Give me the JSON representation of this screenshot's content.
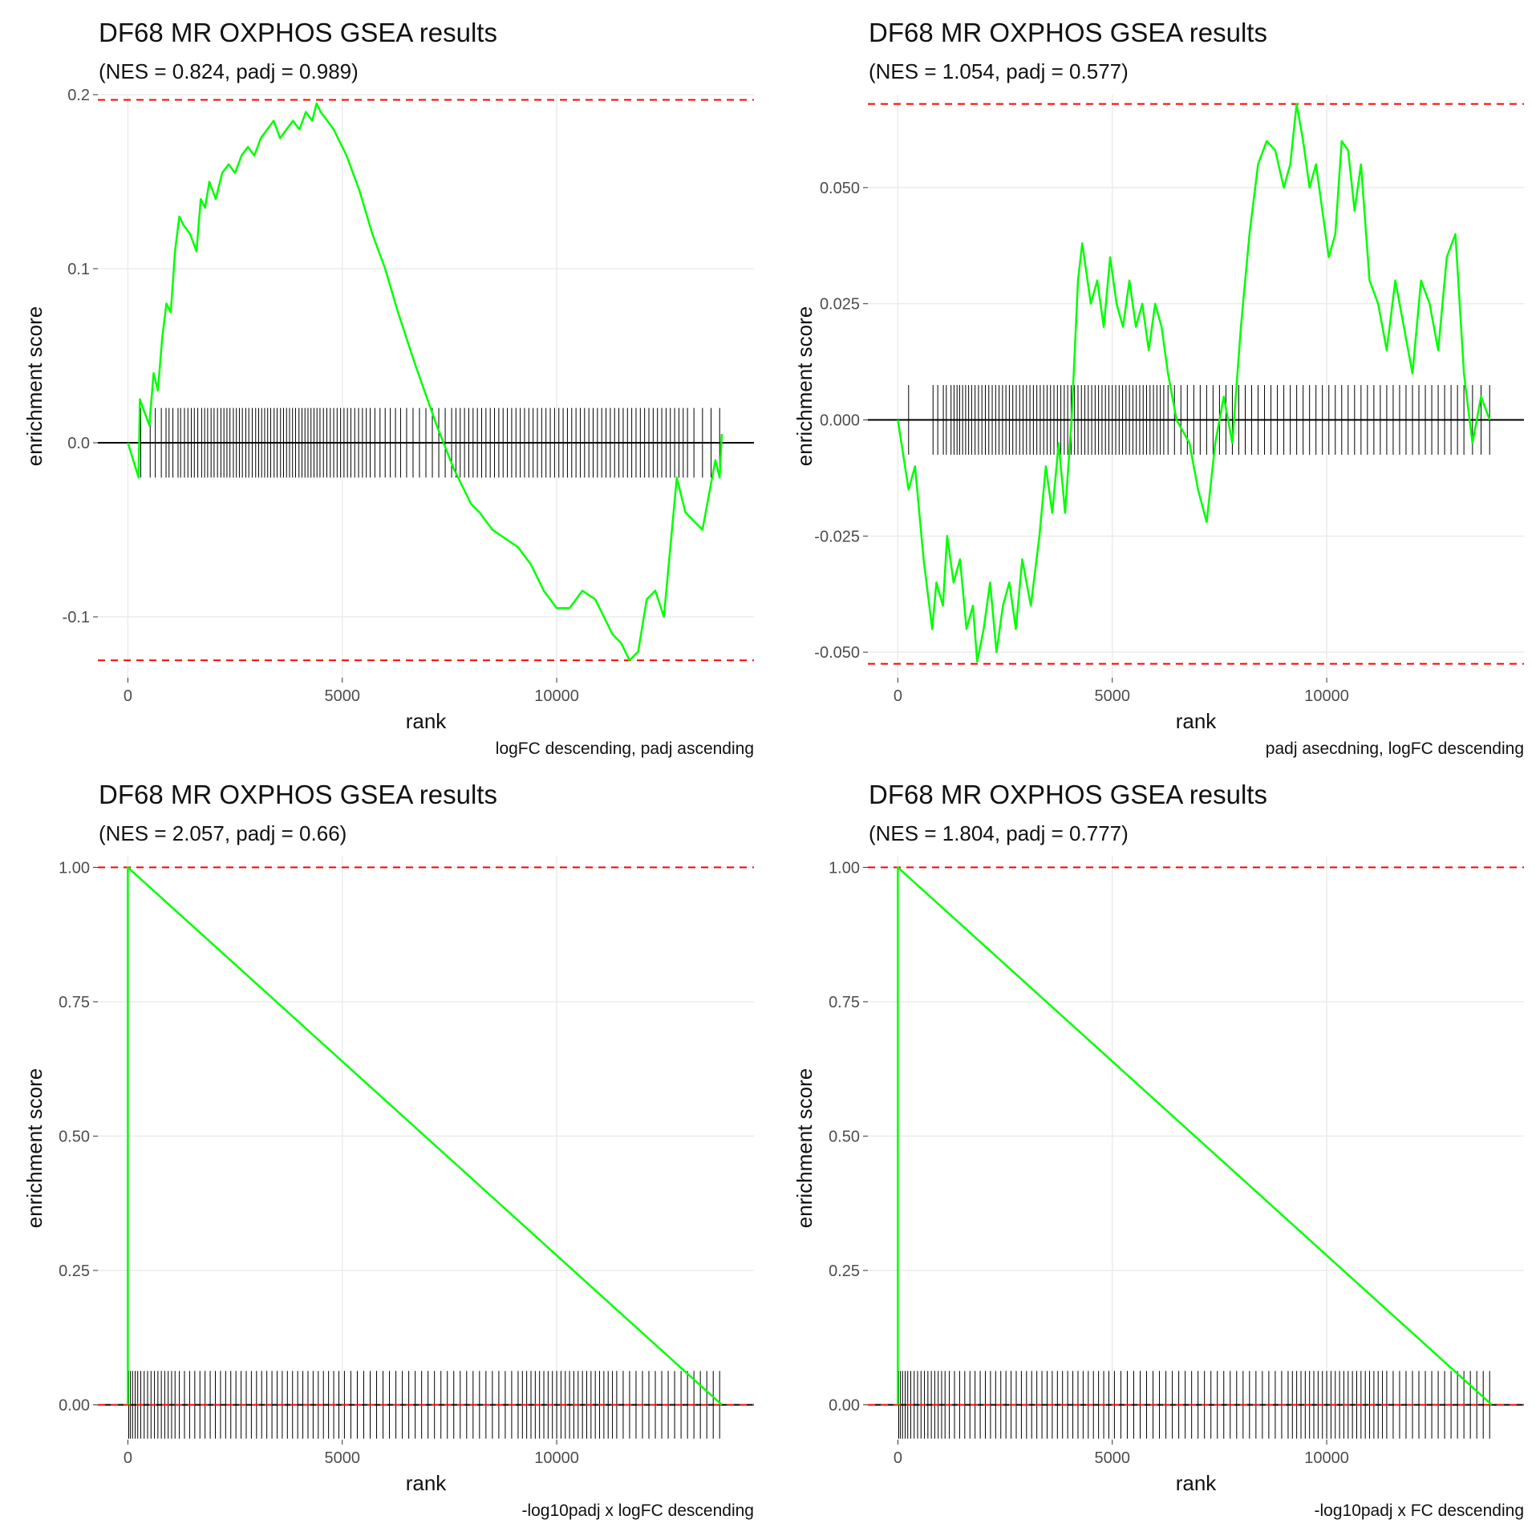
{
  "chart_data": [
    {
      "type": "line",
      "title": "DF68 MR OXPHOS GSEA results",
      "subtitle": "(NES = 0.824, padj = 0.989)",
      "caption": "logFC descending, padj ascending",
      "xlabel": "rank",
      "ylabel": "enrichment score",
      "xlim": [
        -700,
        14600
      ],
      "ylim": [
        -0.135,
        0.2
      ],
      "xticks": [
        0,
        5000,
        10000
      ],
      "xtick_labels": [
        "0",
        "5000",
        "10000"
      ],
      "yticks": [
        -0.1,
        0,
        0.1,
        0.2
      ],
      "ytick_labels": [
        "-0.1",
        "0.0",
        "0.1",
        "0.2"
      ],
      "grid": true,
      "series": [
        {
          "x": [
            0,
            250,
            280,
            500,
            600,
            700,
            800,
            900,
            1000,
            1100,
            1200,
            1300,
            1450,
            1600,
            1700,
            1800,
            1900,
            2050,
            2200,
            2350,
            2500,
            2650,
            2800,
            2950,
            3100,
            3250,
            3400,
            3550,
            3700,
            3850,
            4000,
            4150,
            4300,
            4400,
            4500,
            4800,
            5100,
            5400,
            5700,
            6000,
            6300,
            6700,
            7200,
            7600,
            8000,
            8200,
            8500,
            8800,
            9100,
            9400,
            9700,
            10000,
            10300,
            10600,
            10900,
            11100,
            11300,
            11500,
            11700,
            11900,
            12100,
            12300,
            12500,
            12800,
            13000,
            13200,
            13400,
            13700,
            13800,
            13850
          ],
          "y": [
            0.0,
            -0.02,
            0.025,
            0.01,
            0.04,
            0.03,
            0.06,
            0.08,
            0.075,
            0.11,
            0.13,
            0.125,
            0.12,
            0.11,
            0.14,
            0.135,
            0.15,
            0.14,
            0.155,
            0.16,
            0.155,
            0.165,
            0.17,
            0.165,
            0.175,
            0.18,
            0.185,
            0.175,
            0.18,
            0.185,
            0.18,
            0.19,
            0.185,
            0.195,
            0.19,
            0.18,
            0.165,
            0.145,
            0.12,
            0.1,
            0.075,
            0.045,
            0.01,
            -0.015,
            -0.035,
            -0.04,
            -0.05,
            -0.055,
            -0.06,
            -0.07,
            -0.085,
            -0.095,
            -0.095,
            -0.085,
            -0.09,
            -0.1,
            -0.11,
            -0.115,
            -0.125,
            -0.12,
            -0.09,
            -0.085,
            -0.1,
            -0.02,
            -0.04,
            -0.045,
            -0.05,
            -0.01,
            -0.02,
            0.005
          ]
        }
      ],
      "dashed_lines": [
        0.197,
        -0.125
      ],
      "rug": {
        "height": 0.02,
        "ranks": [
          300,
          520,
          640,
          780,
          890,
          960,
          1050,
          1170,
          1230,
          1320,
          1400,
          1480,
          1550,
          1630,
          1720,
          1790,
          1860,
          1940,
          2010,
          2090,
          2170,
          2240,
          2310,
          2380,
          2460,
          2530,
          2600,
          2670,
          2750,
          2820,
          2900,
          2980,
          3050,
          3120,
          3190,
          3260,
          3330,
          3410,
          3480,
          3560,
          3630,
          3700,
          3770,
          3840,
          3910,
          3990,
          4060,
          4130,
          4200,
          4270,
          4340,
          4410,
          4480,
          4560,
          4640,
          4720,
          4800,
          4880,
          4960,
          5040,
          5120,
          5200,
          5290,
          5380,
          5470,
          5560,
          5650,
          5760,
          5880,
          6000,
          6120,
          6240,
          6360,
          6500,
          6650,
          6800,
          6950,
          7100,
          7250,
          7400,
          7550,
          7650,
          7750,
          7850,
          7950,
          8050,
          8150,
          8250,
          8350,
          8450,
          8550,
          8650,
          8750,
          8850,
          8950,
          9050,
          9150,
          9250,
          9350,
          9450,
          9550,
          9650,
          9750,
          9850,
          9950,
          10050,
          10150,
          10250,
          10350,
          10450,
          10550,
          10650,
          10750,
          10850,
          10950,
          11050,
          11150,
          11250,
          11350,
          11450,
          11550,
          11650,
          11750,
          11850,
          11950,
          12050,
          12150,
          12250,
          12350,
          12450,
          12550,
          12650,
          12750,
          12850,
          12950,
          13050,
          13200,
          13400,
          13600,
          13800
        ]
      },
      "colors": {
        "curve": "#00ff00",
        "dashed": "#ff0000",
        "rug": "#000000"
      }
    },
    {
      "type": "line",
      "title": "DF68 MR OXPHOS GSEA results",
      "subtitle": "(NES = 1.054, padj = 0.577)",
      "caption": "padj asecdning, logFC descending",
      "xlabel": "rank",
      "ylabel": "enrichment score",
      "xlim": [
        -700,
        14600
      ],
      "ylim": [
        -0.0555,
        0.07
      ],
      "xticks": [
        0,
        5000,
        10000
      ],
      "xtick_labels": [
        "0",
        "5000",
        "10000"
      ],
      "yticks": [
        -0.05,
        -0.025,
        0,
        0.025,
        0.05
      ],
      "ytick_labels": [
        "-0.050",
        "-0.025",
        "0.000",
        "0.025",
        "0.050"
      ],
      "grid": true,
      "series": [
        {
          "x": [
            0,
            250,
            400,
            600,
            800,
            900,
            1050,
            1150,
            1300,
            1450,
            1600,
            1750,
            1850,
            2000,
            2150,
            2300,
            2450,
            2600,
            2750,
            2900,
            3100,
            3300,
            3450,
            3600,
            3750,
            3900,
            4050,
            4200,
            4300,
            4500,
            4650,
            4800,
            4950,
            5100,
            5250,
            5400,
            5550,
            5700,
            5850,
            6000,
            6150,
            6300,
            6500,
            6800,
            7000,
            7200,
            7400,
            7600,
            7800,
            8000,
            8200,
            8400,
            8600,
            8800,
            9000,
            9150,
            9300,
            9450,
            9600,
            9750,
            9900,
            10050,
            10200,
            10350,
            10500,
            10650,
            10800,
            11000,
            11200,
            11400,
            11600,
            11800,
            12000,
            12200,
            12400,
            12600,
            12800,
            13000,
            13200,
            13400,
            13600,
            13800
          ],
          "y": [
            0.0,
            -0.015,
            -0.01,
            -0.03,
            -0.045,
            -0.035,
            -0.04,
            -0.025,
            -0.035,
            -0.03,
            -0.045,
            -0.04,
            -0.052,
            -0.045,
            -0.035,
            -0.05,
            -0.04,
            -0.035,
            -0.045,
            -0.03,
            -0.04,
            -0.025,
            -0.01,
            -0.02,
            -0.005,
            -0.02,
            0.0,
            0.03,
            0.038,
            0.025,
            0.03,
            0.02,
            0.035,
            0.025,
            0.02,
            0.03,
            0.02,
            0.025,
            0.015,
            0.025,
            0.02,
            0.01,
            0.0,
            -0.005,
            -0.015,
            -0.022,
            -0.005,
            0.005,
            -0.005,
            0.02,
            0.04,
            0.055,
            0.06,
            0.058,
            0.05,
            0.055,
            0.068,
            0.06,
            0.05,
            0.055,
            0.045,
            0.035,
            0.04,
            0.06,
            0.058,
            0.045,
            0.055,
            0.03,
            0.025,
            0.015,
            0.03,
            0.02,
            0.01,
            0.03,
            0.025,
            0.015,
            0.035,
            0.04,
            0.01,
            -0.005,
            0.005,
            0.0
          ],
          "keep": true
        }
      ],
      "dashed_lines": [
        0.068,
        -0.0525
      ],
      "rug": {
        "height": 0.0075,
        "ranks": [
          250,
          820,
          930,
          1060,
          1130,
          1240,
          1310,
          1380,
          1440,
          1510,
          1580,
          1650,
          1720,
          1800,
          1880,
          1960,
          2040,
          2120,
          2200,
          2280,
          2360,
          2440,
          2520,
          2600,
          2680,
          2760,
          2840,
          2920,
          3000,
          3080,
          3160,
          3240,
          3320,
          3400,
          3480,
          3560,
          3640,
          3720,
          3800,
          3880,
          3960,
          4040,
          4120,
          4200,
          4280,
          4360,
          4440,
          4520,
          4600,
          4680,
          4760,
          4840,
          4920,
          5000,
          5080,
          5160,
          5240,
          5320,
          5400,
          5480,
          5560,
          5640,
          5720,
          5800,
          5880,
          5960,
          6040,
          6120,
          6200,
          6300,
          6450,
          6600,
          6750,
          6900,
          7050,
          7200,
          7350,
          7500,
          7650,
          7800,
          7950,
          8100,
          8250,
          8400,
          8550,
          8700,
          8850,
          9000,
          9150,
          9300,
          9450,
          9600,
          9750,
          9900,
          10050,
          10200,
          10350,
          10500,
          10650,
          10800,
          10950,
          11100,
          11250,
          11400,
          11550,
          11700,
          11850,
          12000,
          12150,
          12300,
          12450,
          12600,
          12750,
          12900,
          13050,
          13200,
          13400,
          13600,
          13800
        ]
      },
      "colors": {
        "curve": "#00ff00",
        "dashed": "#ff0000",
        "rug": "#000000"
      }
    },
    {
      "type": "line",
      "title": "DF68 MR OXPHOS GSEA results",
      "subtitle": "(NES = 2.057, padj = 0.66)",
      "caption": "-log10padj x logFC descending",
      "xlabel": "rank",
      "ylabel": "enrichment score",
      "xlim": [
        -700,
        14600
      ],
      "ylim": [
        -0.065,
        1.02
      ],
      "xticks": [
        0,
        5000,
        10000
      ],
      "xtick_labels": [
        "0",
        "5000",
        "10000"
      ],
      "yticks": [
        0,
        0.25,
        0.5,
        0.75,
        1.0
      ],
      "ytick_labels": [
        "0.00",
        "0.25",
        "0.50",
        "0.75",
        "1.00"
      ],
      "grid": true,
      "series": [
        {
          "x": [
            0,
            0,
            0,
            0,
            0,
            13850
          ],
          "y": [
            0.0,
            0.06,
            0.47,
            0.79,
            1.0,
            0.0
          ]
        }
      ],
      "dashed_lines": [
        1.0,
        0.0
      ],
      "rug": {
        "height": 0.063,
        "ranks": [
          20,
          60,
          110,
          170,
          230,
          300,
          380,
          460,
          540,
          620,
          700,
          780,
          860,
          940,
          1020,
          1100,
          1200,
          1320,
          1440,
          1560,
          1680,
          1800,
          1920,
          2040,
          2160,
          2280,
          2400,
          2520,
          2640,
          2760,
          2880,
          3000,
          3120,
          3240,
          3360,
          3480,
          3600,
          3720,
          3840,
          3960,
          4080,
          4200,
          4320,
          4440,
          4560,
          4680,
          4800,
          4920,
          5050,
          5200,
          5350,
          5500,
          5650,
          5800,
          5950,
          6100,
          6250,
          6400,
          6550,
          6700,
          6850,
          7000,
          7150,
          7300,
          7450,
          7600,
          7750,
          7900,
          8050,
          8200,
          8350,
          8500,
          8650,
          8800,
          8950,
          9100,
          9200,
          9300,
          9400,
          9500,
          9600,
          9700,
          9800,
          9900,
          10000,
          10100,
          10200,
          10300,
          10400,
          10500,
          10600,
          10700,
          10800,
          10900,
          11000,
          11100,
          11200,
          11300,
          11400,
          11550,
          11700,
          11850,
          12000,
          12150,
          12300,
          12450,
          12600,
          12750,
          12900,
          13050,
          13200,
          13350,
          13500,
          13650,
          13800
        ]
      },
      "colors": {
        "curve": "#00ff00",
        "dashed": "#ff0000",
        "rug": "#000000"
      }
    },
    {
      "type": "line",
      "title": "DF68 MR OXPHOS GSEA results",
      "subtitle": "(NES = 1.804, padj = 0.777)",
      "caption": "-log10padj x FC descending",
      "xlabel": "rank",
      "ylabel": "enrichment score",
      "xlim": [
        -700,
        14600
      ],
      "ylim": [
        -0.065,
        1.02
      ],
      "xticks": [
        0,
        5000,
        10000
      ],
      "xtick_labels": [
        "0",
        "5000",
        "10000"
      ],
      "yticks": [
        0,
        0.25,
        0.5,
        0.75,
        1.0
      ],
      "ytick_labels": [
        "0.00",
        "0.25",
        "0.50",
        "0.75",
        "1.00"
      ],
      "grid": true,
      "series": [
        {
          "x": [
            0,
            0,
            0,
            0,
            0,
            13850
          ],
          "y": [
            0.0,
            0.06,
            0.47,
            0.79,
            1.0,
            0.0
          ]
        }
      ],
      "dashed_lines": [
        1.0,
        0.0
      ],
      "rug": {
        "height": 0.063,
        "ranks": [
          20,
          60,
          110,
          170,
          230,
          300,
          380,
          460,
          540,
          620,
          700,
          780,
          860,
          940,
          1020,
          1100,
          1200,
          1320,
          1440,
          1560,
          1680,
          1800,
          1920,
          2040,
          2160,
          2280,
          2400,
          2520,
          2640,
          2760,
          2880,
          3000,
          3120,
          3240,
          3360,
          3480,
          3600,
          3720,
          3840,
          3960,
          4080,
          4200,
          4320,
          4440,
          4560,
          4680,
          4800,
          4920,
          5050,
          5200,
          5350,
          5500,
          5650,
          5800,
          5950,
          6100,
          6250,
          6400,
          6550,
          6700,
          6850,
          7000,
          7150,
          7300,
          7450,
          7600,
          7750,
          7900,
          8050,
          8200,
          8350,
          8500,
          8650,
          8800,
          8950,
          9100,
          9200,
          9300,
          9400,
          9500,
          9600,
          9700,
          9800,
          9900,
          10000,
          10100,
          10200,
          10300,
          10400,
          10500,
          10600,
          10700,
          10800,
          10900,
          11000,
          11100,
          11200,
          11300,
          11400,
          11550,
          11700,
          11850,
          12000,
          12150,
          12300,
          12450,
          12600,
          12750,
          12900,
          13050,
          13200,
          13350,
          13500,
          13650,
          13800
        ]
      },
      "colors": {
        "curve": "#00ff00",
        "dashed": "#ff0000",
        "rug": "#000000"
      }
    }
  ]
}
